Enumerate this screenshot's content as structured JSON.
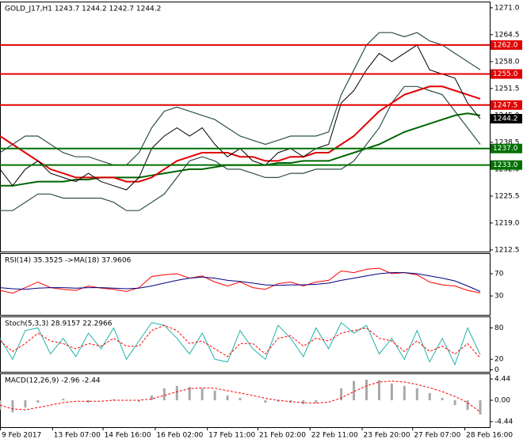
{
  "chart_data": [
    {
      "type": "line",
      "title": "GOLD_J17,H1  1243.7 1244.2 1242.7 1244.2",
      "x": [
        0,
        8,
        16,
        24,
        32,
        40,
        48,
        56,
        64,
        72,
        80,
        88,
        96,
        104,
        112,
        120,
        128,
        136,
        144,
        152,
        160,
        168,
        176,
        184,
        192,
        200,
        208,
        216,
        224,
        232,
        240,
        248,
        256,
        264,
        272,
        280,
        288,
        296,
        304
      ],
      "ylim": [
        1212.1,
        1272.5
      ],
      "yticks": [
        {
          "value": 1271,
          "label": "1271.0"
        },
        1264.5,
        {
          "value": 1258,
          "label": "1258.0"
        },
        1251.5,
        {
          "value": 1245,
          "label": "1245.0"
        },
        1238.5,
        {
          "value": 1232,
          "label": "1232.0"
        },
        1225.5,
        {
          "value": 1219,
          "label": "1219.0"
        },
        1212.5
      ],
      "levels": [
        {
          "value": 1262,
          "label": "1262.0",
          "color": "#e00000"
        },
        {
          "value": 1255,
          "label": "1255.0",
          "color": "#e00000"
        },
        {
          "value": 1247.5,
          "label": "1247.5",
          "color": "#e00000"
        },
        {
          "value": 1237,
          "label": "1237.0",
          "color": "#007000"
        },
        {
          "value": 1233,
          "label": "1233.0",
          "color": "#007000"
        }
      ],
      "last": 1244.2,
      "series": [
        {
          "color": "#2f4f4f",
          "width": 1.2,
          "values": [
            1236,
            1238,
            1240,
            1240,
            1238,
            1236,
            1235,
            1235,
            1234,
            1233,
            1233,
            1236,
            1242,
            1246,
            1247,
            1246,
            1245,
            1244,
            1242,
            1240,
            1239,
            1238,
            1239,
            1240,
            1240,
            1240,
            1241,
            1250,
            1256,
            1262,
            1265,
            1265,
            1264,
            1265,
            1263,
            1262,
            1260,
            1258,
            1256
          ]
        },
        {
          "color": "#2f4f4f",
          "width": 1.2,
          "values": [
            1222,
            1222,
            1224,
            1226,
            1226,
            1225,
            1225,
            1225,
            1225,
            1224,
            1222,
            1222,
            1224,
            1226,
            1230,
            1234,
            1235,
            1234,
            1232,
            1232,
            1231,
            1230,
            1230,
            1231,
            1231,
            1232,
            1232,
            1232,
            1234,
            1238,
            1242,
            1248,
            1252,
            1252,
            1251,
            1250,
            1246,
            1242,
            1238
          ]
        },
        {
          "color": "#006400",
          "width": 2,
          "values": [
            1228,
            1228,
            1228.5,
            1229,
            1229,
            1229,
            1229.5,
            1229.5,
            1230,
            1230,
            1230,
            1230,
            1230.5,
            1231,
            1231.5,
            1232,
            1232,
            1232.5,
            1233,
            1233,
            1233,
            1233,
            1233.5,
            1233.5,
            1234,
            1234,
            1234,
            1235,
            1236,
            1237,
            1238,
            1239.5,
            1241,
            1242,
            1243,
            1244,
            1245,
            1245.5,
            1245
          ]
        },
        {
          "color": "#e00000",
          "width": 2,
          "values": [
            1240,
            1238,
            1236,
            1234,
            1232,
            1231,
            1230,
            1230,
            1230,
            1230,
            1229,
            1229,
            1230,
            1232,
            1234,
            1235,
            1236,
            1236,
            1236,
            1235,
            1235,
            1234,
            1234,
            1235,
            1235,
            1236,
            1236,
            1238,
            1240,
            1243,
            1246,
            1248,
            1250,
            1251,
            1252,
            1252,
            1251,
            1250,
            1249
          ]
        },
        {
          "color": "#000000",
          "width": 1,
          "values": [
            1232,
            1228,
            1232,
            1234,
            1231,
            1230,
            1229,
            1231,
            1229,
            1228,
            1227,
            1230,
            1237,
            1240,
            1242,
            1240,
            1242,
            1238,
            1235,
            1237,
            1234,
            1233,
            1236,
            1237,
            1235,
            1237,
            1238,
            1248,
            1251,
            1256,
            1260,
            1258,
            1260,
            1262,
            1256,
            1255,
            1254,
            1248,
            1244.2
          ]
        }
      ]
    },
    {
      "type": "line",
      "title": "RSI(14) 35.3525 ->MA(18) 37.9606",
      "ylim": [
        -4,
        107
      ],
      "yticks": [
        70,
        30
      ],
      "series": [
        {
          "color": "#ff0000",
          "width": 1,
          "values": [
            40,
            35,
            45,
            55,
            45,
            42,
            40,
            48,
            44,
            42,
            38,
            45,
            65,
            68,
            70,
            62,
            66,
            55,
            48,
            55,
            45,
            42,
            52,
            55,
            48,
            55,
            58,
            75,
            72,
            78,
            80,
            70,
            72,
            68,
            55,
            50,
            48,
            40,
            35.35
          ]
        },
        {
          "color": "#000080",
          "width": 1,
          "values": [
            45,
            43,
            42,
            44,
            45,
            45,
            44,
            45,
            45,
            44,
            43,
            44,
            48,
            53,
            58,
            62,
            64,
            62,
            58,
            56,
            53,
            50,
            49,
            50,
            50,
            51,
            53,
            58,
            62,
            66,
            70,
            72,
            72,
            70,
            66,
            62,
            57,
            48,
            37.96
          ]
        }
      ]
    },
    {
      "type": "line",
      "title": "Stoch(5,3,3) 28.9157 22.2966",
      "ylim": [
        -4,
        102
      ],
      "yticks": [
        80,
        20,
        0
      ],
      "series": [
        {
          "color": "#20b2aa",
          "width": 1,
          "values": [
            60,
            20,
            75,
            80,
            30,
            60,
            25,
            70,
            40,
            80,
            20,
            55,
            90,
            85,
            60,
            30,
            70,
            20,
            15,
            75,
            40,
            20,
            85,
            60,
            25,
            80,
            40,
            90,
            70,
            85,
            30,
            60,
            20,
            75,
            15,
            60,
            10,
            80,
            28.9
          ]
        },
        {
          "color": "#ff0000",
          "width": 1,
          "dash": true,
          "values": [
            55,
            35,
            50,
            70,
            55,
            50,
            40,
            50,
            45,
            60,
            45,
            45,
            75,
            85,
            75,
            50,
            55,
            40,
            25,
            50,
            50,
            30,
            60,
            65,
            45,
            60,
            55,
            70,
            75,
            80,
            60,
            55,
            35,
            55,
            35,
            45,
            30,
            50,
            22.3
          ]
        }
      ]
    },
    {
      "type": "bar",
      "title": "MACD(12,26,9) -2.96 -2.44",
      "ylim": [
        -5.6,
        5.6
      ],
      "yticks": [
        4.44,
        {
          "value": 0,
          "label": "0.00"
        },
        -4.44
      ],
      "xlim": [
        0,
        310
      ],
      "xticks": [
        {
          "value": 0,
          "label": "9 Feb 2017"
        },
        {
          "value": 33,
          "label": "13 Feb 07:00"
        },
        {
          "value": 65,
          "label": "14 Feb 16:00"
        },
        {
          "value": 98,
          "label": "16 Feb 02:00"
        },
        {
          "value": 131,
          "label": "17 Feb 11:00"
        },
        {
          "value": 163,
          "label": "21 Feb 02:00"
        },
        {
          "value": 196,
          "label": "22 Feb 11:00"
        },
        {
          "value": 229,
          "label": "23 Feb 20:00"
        },
        {
          "value": 261,
          "label": "27 Feb 07:00"
        },
        {
          "value": 294,
          "label": "28 Feb 16:00"
        }
      ],
      "series": [
        {
          "color": "#a9a9a9",
          "kind": "bar",
          "values": [
            -2,
            -2.5,
            -1.5,
            -0.5,
            0,
            0.3,
            0,
            -0.5,
            0,
            0.2,
            0,
            -0.3,
            1,
            2.5,
            3,
            2.8,
            2.5,
            2,
            1,
            0.5,
            0,
            -0.5,
            -0.3,
            -0.5,
            -0.8,
            -0.5,
            0,
            2.5,
            4,
            4.3,
            4.2,
            3.5,
            3,
            2.5,
            1.5,
            0.5,
            -1,
            -2,
            -2.96
          ]
        },
        {
          "color": "#ff0000",
          "width": 1,
          "dash": true,
          "values": [
            -1,
            -1.8,
            -2,
            -1.5,
            -1,
            -0.5,
            -0.2,
            -0.2,
            -0.2,
            0,
            0,
            0,
            0.3,
            1,
            1.8,
            2.4,
            2.6,
            2.5,
            2,
            1.5,
            1,
            0.4,
            0,
            -0.3,
            -0.5,
            -0.6,
            -0.4,
            0.5,
            1.8,
            3,
            3.8,
            4,
            3.8,
            3.3,
            2.6,
            1.8,
            0.8,
            -0.5,
            -2.44
          ]
        }
      ]
    }
  ]
}
